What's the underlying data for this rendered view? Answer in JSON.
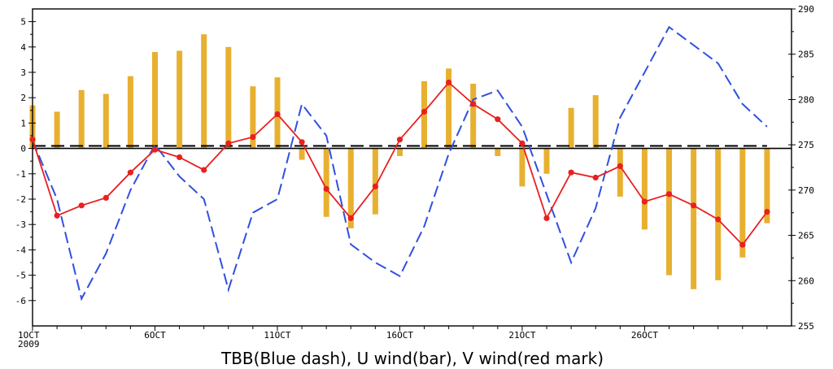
{
  "chart_data": {
    "type": "bar",
    "xlabel": "TBB(Blue dash), U wind(bar), V wind(red mark)",
    "x_tick_labels": [
      "1OCT",
      "6OCT",
      "11OCT",
      "16OCT",
      "21OCT",
      "26OCT"
    ],
    "x_year_label": "2009",
    "x_ticks": [
      1,
      6,
      11,
      16,
      21,
      26
    ],
    "xlim": [
      1,
      32
    ],
    "y_left_lim": [
      -7,
      5.5
    ],
    "y_left_ticks": [
      -6,
      -5,
      -4,
      -3,
      -2,
      -1,
      0,
      1,
      2,
      3,
      4,
      5
    ],
    "y_right_lim": [
      255,
      290
    ],
    "y_right_ticks": [
      255,
      260,
      265,
      270,
      275,
      280,
      285,
      290
    ],
    "reference_line": 0.1,
    "days": [
      1,
      2,
      3,
      4,
      5,
      6,
      7,
      8,
      9,
      10,
      11,
      12,
      13,
      14,
      15,
      16,
      17,
      18,
      19,
      20,
      21,
      22,
      23,
      24,
      25,
      26,
      27,
      28,
      29,
      30,
      31
    ],
    "series": [
      {
        "name": "U wind",
        "kind": "bar",
        "axis": "left",
        "color": "#e8b030",
        "values": [
          1.7,
          1.45,
          2.3,
          2.15,
          2.85,
          3.8,
          3.85,
          4.5,
          4.0,
          2.45,
          2.8,
          -0.45,
          -2.7,
          -3.15,
          -2.6,
          -0.3,
          2.65,
          3.15,
          2.55,
          -0.3,
          -1.5,
          -1.0,
          1.6,
          2.1,
          -1.9,
          -3.2,
          -5.0,
          -5.55,
          -5.2,
          -4.3,
          -2.95
        ]
      },
      {
        "name": "V wind",
        "kind": "line-markers",
        "axis": "left",
        "color": "#e82020",
        "values": [
          0.35,
          -2.65,
          -2.25,
          -1.95,
          -0.95,
          -0.05,
          -0.35,
          -0.85,
          0.2,
          0.45,
          1.35,
          0.25,
          -1.6,
          -2.75,
          -1.5,
          0.35,
          1.45,
          2.6,
          1.75,
          1.15,
          0.2,
          -2.75,
          -0.95,
          -1.15,
          -0.7,
          -2.1,
          -1.8,
          -2.25,
          -2.8,
          -3.8,
          -2.5
        ]
      },
      {
        "name": "TBB",
        "kind": "dashed-line",
        "axis": "right",
        "color": "#3050e0",
        "values": [
          275.5,
          269,
          258,
          263,
          270,
          275,
          271.5,
          269,
          259,
          267.5,
          269,
          279.5,
          276,
          264,
          262,
          260.5,
          266,
          274,
          280,
          281,
          277,
          269.5,
          262,
          268,
          278,
          283,
          288,
          286,
          284,
          279.5,
          277
        ]
      }
    ]
  }
}
